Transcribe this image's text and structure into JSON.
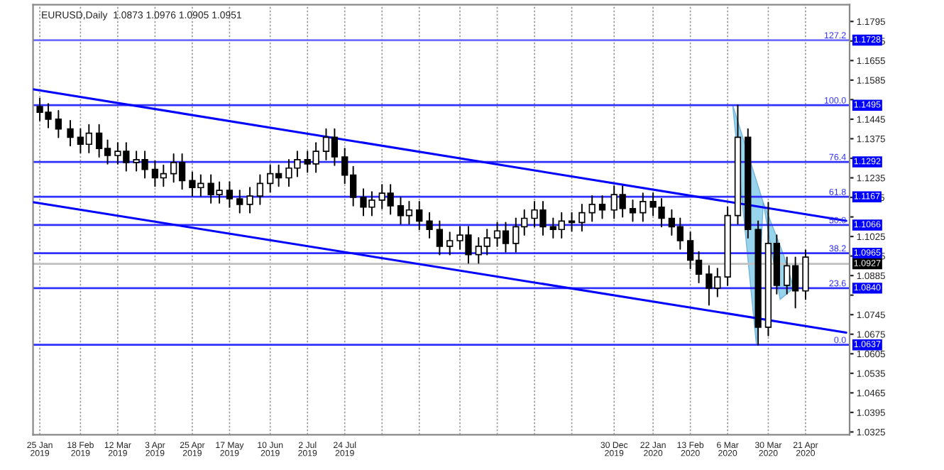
{
  "chart_data": {
    "type": "candlestick",
    "title": "EURUSD,Daily  1.0873 1.0976 1.0905 1.0951",
    "x": [
      "2019-01-25",
      "2019-01-30",
      "2019-02-05",
      "2019-02-12",
      "2019-02-18",
      "2019-02-23",
      "2019-03-01",
      "2019-03-06",
      "2019-03-12",
      "2019-03-17",
      "2019-03-23",
      "2019-03-28",
      "2019-04-03",
      "2019-04-08",
      "2019-04-14",
      "2019-04-19",
      "2019-04-25",
      "2019-04-30",
      "2019-05-06",
      "2019-05-11",
      "2019-05-17",
      "2019-05-23",
      "2019-05-29",
      "2019-06-04",
      "2019-06-10",
      "2019-06-15",
      "2019-06-21",
      "2019-06-26",
      "2019-07-02",
      "2019-07-07",
      "2019-07-13",
      "2019-07-18",
      "2019-07-24",
      "2019-07-29",
      "2019-08-04",
      "2019-08-09",
      "2019-08-15",
      "2019-08-20",
      "2019-08-26",
      "2019-08-31",
      "2019-09-06",
      "2019-09-12",
      "2019-09-18",
      "2019-09-24",
      "2019-09-30",
      "2019-10-05",
      "2019-10-11",
      "2019-10-16",
      "2019-10-22",
      "2019-10-27",
      "2019-11-02",
      "2019-11-07",
      "2019-11-13",
      "2019-11-18",
      "2019-11-24",
      "2019-11-29",
      "2019-12-05",
      "2019-12-11",
      "2019-12-17",
      "2019-12-23",
      "2019-12-30",
      "2020-01-04",
      "2020-01-10",
      "2020-01-16",
      "2020-01-22",
      "2020-01-27",
      "2020-02-02",
      "2020-02-07",
      "2020-02-13",
      "2020-02-18",
      "2020-02-24",
      "2020-02-29",
      "2020-03-06",
      "2020-03-12",
      "2020-03-18",
      "2020-03-24",
      "2020-03-30",
      "2020-04-04",
      "2020-04-10",
      "2020-04-15",
      "2020-04-21"
    ],
    "ohlc": [
      [
        1.149,
        1.152,
        1.144,
        1.147
      ],
      [
        1.147,
        1.15,
        1.1415,
        1.1445
      ],
      [
        1.1445,
        1.1475,
        1.138,
        1.141
      ],
      [
        1.141,
        1.144,
        1.135,
        1.138
      ],
      [
        1.138,
        1.141,
        1.1325,
        1.1355
      ],
      [
        1.1355,
        1.1425,
        1.1325,
        1.1395
      ],
      [
        1.1395,
        1.1425,
        1.131,
        1.134
      ],
      [
        1.134,
        1.137,
        1.1285,
        1.1315
      ],
      [
        1.1315,
        1.136,
        1.1285,
        1.133
      ],
      [
        1.133,
        1.136,
        1.126,
        1.129
      ],
      [
        1.129,
        1.133,
        1.126,
        1.13
      ],
      [
        1.13,
        1.133,
        1.1235,
        1.1265
      ],
      [
        1.1265,
        1.1295,
        1.1205,
        1.1235
      ],
      [
        1.1235,
        1.128,
        1.1205,
        1.125
      ],
      [
        1.125,
        1.132,
        1.122,
        1.129
      ],
      [
        1.129,
        1.132,
        1.1195,
        1.1225
      ],
      [
        1.1225,
        1.1255,
        1.117,
        1.12
      ],
      [
        1.12,
        1.1245,
        1.117,
        1.1215
      ],
      [
        1.1215,
        1.1245,
        1.1145,
        1.1175
      ],
      [
        1.1175,
        1.122,
        1.1145,
        1.119
      ],
      [
        1.119,
        1.122,
        1.113,
        1.116
      ],
      [
        1.116,
        1.119,
        1.111,
        1.114
      ],
      [
        1.114,
        1.12,
        1.111,
        1.117
      ],
      [
        1.117,
        1.1245,
        1.114,
        1.1215
      ],
      [
        1.1215,
        1.128,
        1.1185,
        1.125
      ],
      [
        1.125,
        1.128,
        1.1205,
        1.1235
      ],
      [
        1.1235,
        1.13,
        1.1205,
        1.127
      ],
      [
        1.127,
        1.133,
        1.124,
        1.13
      ],
      [
        1.13,
        1.133,
        1.1255,
        1.1285
      ],
      [
        1.1285,
        1.136,
        1.1255,
        1.133
      ],
      [
        1.133,
        1.141,
        1.13,
        1.138
      ],
      [
        1.138,
        1.141,
        1.128,
        1.131
      ],
      [
        1.131,
        1.134,
        1.1215,
        1.1245
      ],
      [
        1.1245,
        1.1275,
        1.1135,
        1.1165
      ],
      [
        1.1165,
        1.1195,
        1.11,
        1.113
      ],
      [
        1.113,
        1.1185,
        1.11,
        1.1155
      ],
      [
        1.1155,
        1.121,
        1.1125,
        1.118
      ],
      [
        1.118,
        1.121,
        1.1105,
        1.1135
      ],
      [
        1.1135,
        1.1165,
        1.107,
        1.11
      ],
      [
        1.11,
        1.115,
        1.107,
        1.112
      ],
      [
        1.112,
        1.115,
        1.105,
        1.108
      ],
      [
        1.108,
        1.111,
        1.102,
        1.105
      ],
      [
        1.105,
        1.108,
        1.096,
        1.099
      ],
      [
        1.099,
        1.104,
        1.096,
        1.101
      ],
      [
        1.101,
        1.106,
        1.098,
        1.103
      ],
      [
        1.103,
        1.106,
        1.093,
        1.096
      ],
      [
        1.096,
        1.102,
        1.093,
        1.099
      ],
      [
        1.099,
        1.105,
        1.096,
        1.102
      ],
      [
        1.102,
        1.1075,
        1.099,
        1.1045
      ],
      [
        1.1045,
        1.1075,
        1.097,
        1.1
      ],
      [
        1.1,
        1.109,
        1.097,
        1.106
      ],
      [
        1.106,
        1.112,
        1.103,
        1.109
      ],
      [
        1.109,
        1.115,
        1.106,
        1.112
      ],
      [
        1.112,
        1.115,
        1.103,
        1.106
      ],
      [
        1.106,
        1.109,
        1.102,
        1.105
      ],
      [
        1.105,
        1.111,
        1.102,
        1.108
      ],
      [
        1.108,
        1.111,
        1.1045,
        1.1075
      ],
      [
        1.1075,
        1.114,
        1.1045,
        1.111
      ],
      [
        1.111,
        1.117,
        1.108,
        1.114
      ],
      [
        1.114,
        1.117,
        1.109,
        1.112
      ],
      [
        1.112,
        1.1205,
        1.109,
        1.1175
      ],
      [
        1.1175,
        1.1205,
        1.1095,
        1.1125
      ],
      [
        1.1125,
        1.1155,
        1.108,
        1.111
      ],
      [
        1.111,
        1.118,
        1.108,
        1.115
      ],
      [
        1.115,
        1.118,
        1.11,
        1.113
      ],
      [
        1.113,
        1.116,
        1.106,
        1.109
      ],
      [
        1.109,
        1.112,
        1.103,
        1.106
      ],
      [
        1.106,
        1.109,
        1.098,
        1.101
      ],
      [
        1.101,
        1.104,
        1.091,
        1.094
      ],
      [
        1.094,
        1.097,
        1.086,
        1.089
      ],
      [
        1.089,
        1.092,
        1.078,
        1.084
      ],
      [
        1.084,
        1.091,
        1.081,
        1.088
      ],
      [
        1.088,
        1.113,
        1.085,
        1.11
      ],
      [
        1.11,
        1.1495,
        1.107,
        1.138
      ],
      [
        1.138,
        1.141,
        1.102,
        1.105
      ],
      [
        1.105,
        1.108,
        1.0637,
        1.07
      ],
      [
        1.07,
        1.1147,
        1.067,
        1.1
      ],
      [
        1.1,
        1.103,
        1.082,
        1.085
      ],
      [
        1.085,
        1.095,
        1.082,
        1.092
      ],
      [
        1.092,
        1.095,
        1.077,
        1.083
      ],
      [
        1.083,
        1.0976,
        1.08,
        1.0951
      ]
    ],
    "series": [
      {
        "type": "line",
        "color": "#0000ff",
        "x": [
          "2019-01-21",
          "2020-05-15"
        ],
        "values": [
          1.1552,
          1.1081
        ]
      },
      {
        "type": "line",
        "color": "#0000ff",
        "x": [
          "2019-01-21",
          "2020-05-15"
        ],
        "values": [
          1.1148,
          1.0681
        ]
      }
    ],
    "ref_lines": [
      {
        "axis": "y",
        "value": 1.1728,
        "label": "1.1728",
        "color": "#6f6fff"
      },
      {
        "axis": "y",
        "value": 1.1495,
        "label": "1.1495",
        "color": "#3030ff"
      },
      {
        "axis": "y",
        "value": 1.1292,
        "label": "1.1292",
        "color": "#3030ff"
      },
      {
        "axis": "y",
        "value": 1.1167,
        "label": "1.1167",
        "color": "#3030ff"
      },
      {
        "axis": "y",
        "value": 1.1066,
        "label": "1.1066",
        "color": "#3030ff"
      },
      {
        "axis": "y",
        "value": 1.0965,
        "label": "1.0965",
        "color": "#3030ff"
      },
      {
        "axis": "y",
        "value": 1.084,
        "label": "1.0840",
        "color": "#3030ff"
      },
      {
        "axis": "y",
        "value": 1.0637,
        "label": "1.0637",
        "color": "#3030ff"
      },
      {
        "axis": "y",
        "value": 1.0927,
        "label": "1.0927",
        "color": "#c0c0c0"
      }
    ],
    "annotations": [
      {
        "text": "127.2",
        "x": "2020-05-15",
        "y": 1.1728
      },
      {
        "text": "100.0",
        "x": "2020-05-15",
        "y": 1.1495
      },
      {
        "text": "76.4",
        "x": "2020-05-15",
        "y": 1.1292
      },
      {
        "text": "61.8",
        "x": "2020-05-15",
        "y": 1.1167
      },
      {
        "text": "50.0",
        "x": "2020-05-15",
        "y": 1.1066
      },
      {
        "text": "38.2",
        "x": "2020-05-15",
        "y": 1.0965
      },
      {
        "text": "23.6",
        "x": "2020-05-15",
        "y": 1.084
      },
      {
        "text": "0.0",
        "x": "2020-05-15",
        "y": 1.0637
      }
    ],
    "xlim": [
      "2019-01-21",
      "2020-05-17"
    ],
    "xticks": [
      {
        "value": "2019-01-25",
        "label": "25 Jan 2019"
      },
      {
        "value": "2019-02-18",
        "label": "18 Feb 2019"
      },
      {
        "value": "2019-03-12",
        "label": "12 Mar 2019"
      },
      {
        "value": "2019-04-03",
        "label": "3 Apr 2019"
      },
      {
        "value": "2019-04-25",
        "label": "25 Apr 2019"
      },
      {
        "value": "2019-05-17",
        "label": "17 May 2019"
      },
      {
        "value": "2019-06-10",
        "label": "10 Jun 2019"
      },
      {
        "value": "2019-07-02",
        "label": "2 Jul 2019"
      },
      {
        "value": "2019-07-24",
        "label": "24 Jul 2019"
      },
      {
        "value": "2019-08-15",
        "label": null
      },
      {
        "value": "2019-09-06",
        "label": null
      },
      {
        "value": "2019-09-30",
        "label": null
      },
      {
        "value": "2019-10-22",
        "label": null
      },
      {
        "value": "2019-11-13",
        "label": null
      },
      {
        "value": "2019-12-05",
        "label": null
      },
      {
        "value": "2019-12-30",
        "label": "30 Dec 2019"
      },
      {
        "value": "2020-01-22",
        "label": "22 Jan 2020"
      },
      {
        "value": "2020-02-13",
        "label": "13 Feb 2020"
      },
      {
        "value": "2020-03-06",
        "label": "6 Mar 2020"
      },
      {
        "value": "2020-03-30",
        "label": "30 Mar 2020"
      },
      {
        "value": "2020-04-21",
        "label": "21 Apr 2020"
      }
    ],
    "ylim": [
      1.0315,
      1.1855
    ],
    "yticks": [
      1.0325,
      1.0395,
      1.0465,
      1.0535,
      1.0605,
      1.0675,
      1.0745,
      {
        "value": 1.0815,
        "label": null
      },
      1.0885,
      1.0955,
      1.1025,
      {
        "value": 1.1095,
        "label": null
      },
      1.1165,
      1.1235,
      {
        "value": 1.1305,
        "label": null
      },
      1.1375,
      1.1445,
      {
        "value": 1.1515,
        "label": null
      },
      1.1585,
      1.1655,
      1.1725,
      1.1795
    ],
    "grid": "x"
  }
}
